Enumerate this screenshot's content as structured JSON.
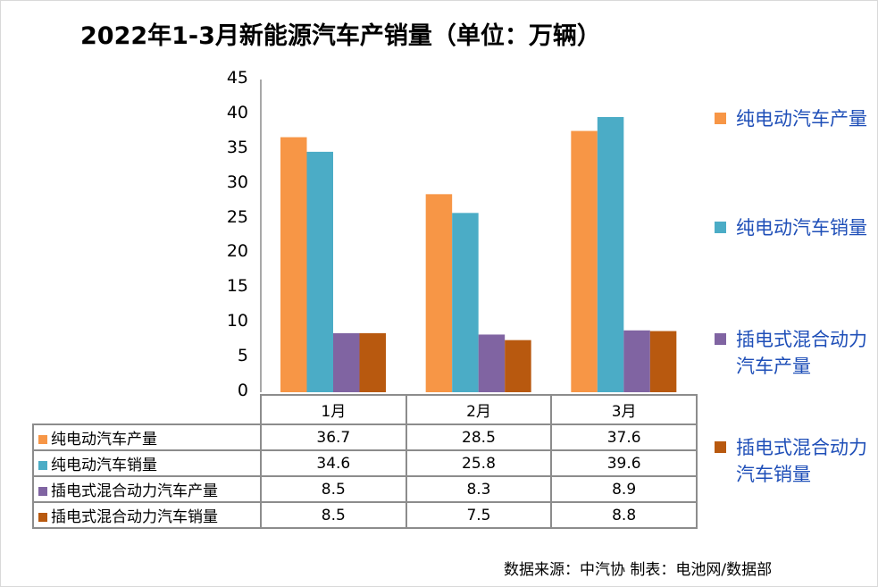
{
  "chart_data": {
    "type": "bar",
    "title": "2022年1-3月新能源汽车产销量（单位：万辆）",
    "categories": [
      "1月",
      "2月",
      "3月"
    ],
    "series": [
      {
        "name": "纯电动汽车产量",
        "values": [
          36.7,
          28.5,
          37.6
        ],
        "color": "#F79646"
      },
      {
        "name": "纯电动汽车销量",
        "values": [
          34.6,
          25.8,
          39.6
        ],
        "color": "#4BACC6"
      },
      {
        "name": "插电式混合动力汽车产量",
        "values": [
          8.5,
          8.3,
          8.9
        ],
        "color": "#8064A2"
      },
      {
        "name": "插电式混合动力汽车销量",
        "values": [
          8.5,
          7.5,
          8.8
        ],
        "color": "#B8590F"
      }
    ],
    "ylim": [
      0,
      45
    ],
    "yticks": [
      "0",
      "5",
      "10",
      "15",
      "20",
      "25",
      "30",
      "35",
      "40",
      "45"
    ],
    "legend_position": "right",
    "data_table": true,
    "grid": false
  },
  "legend_text_color": "#1F4FB8",
  "source": "数据来源：中汽协  制表：电池网/数据部"
}
